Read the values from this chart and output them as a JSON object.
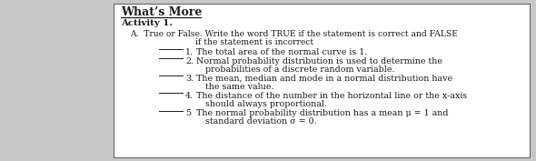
{
  "title": "What’s More",
  "subtitle": "Activity 1.",
  "instruction_line1": "A.  True or False. Write the word TRUE if the statement is correct and FALSE",
  "instruction_line2": "if the statement is incorrect",
  "items": [
    {
      "number": "1.",
      "lines": [
        "The total area of the normal curve is 1."
      ]
    },
    {
      "number": "2.",
      "lines": [
        "Normal probability distribution is used to determine the",
        "probabilities of a discrete random variable."
      ]
    },
    {
      "number": "3.",
      "lines": [
        "The mean, median and mode in a normal distribution have",
        "the same value."
      ]
    },
    {
      "number": "4.",
      "lines": [
        "The distance of the number in the horizontal line or the x-axis",
        "should always proportional."
      ]
    },
    {
      "number": "5",
      "lines": [
        "The normal probability distribution has a mean μ = 1 and",
        "standard deviation σ = 0."
      ]
    }
  ],
  "bg_outer": "#c8c8c8",
  "bg_inner": "#ffffff",
  "text_color": "#1a1a1a",
  "font_size_title": 9.0,
  "font_size_body": 6.8,
  "border_color": "#666666"
}
